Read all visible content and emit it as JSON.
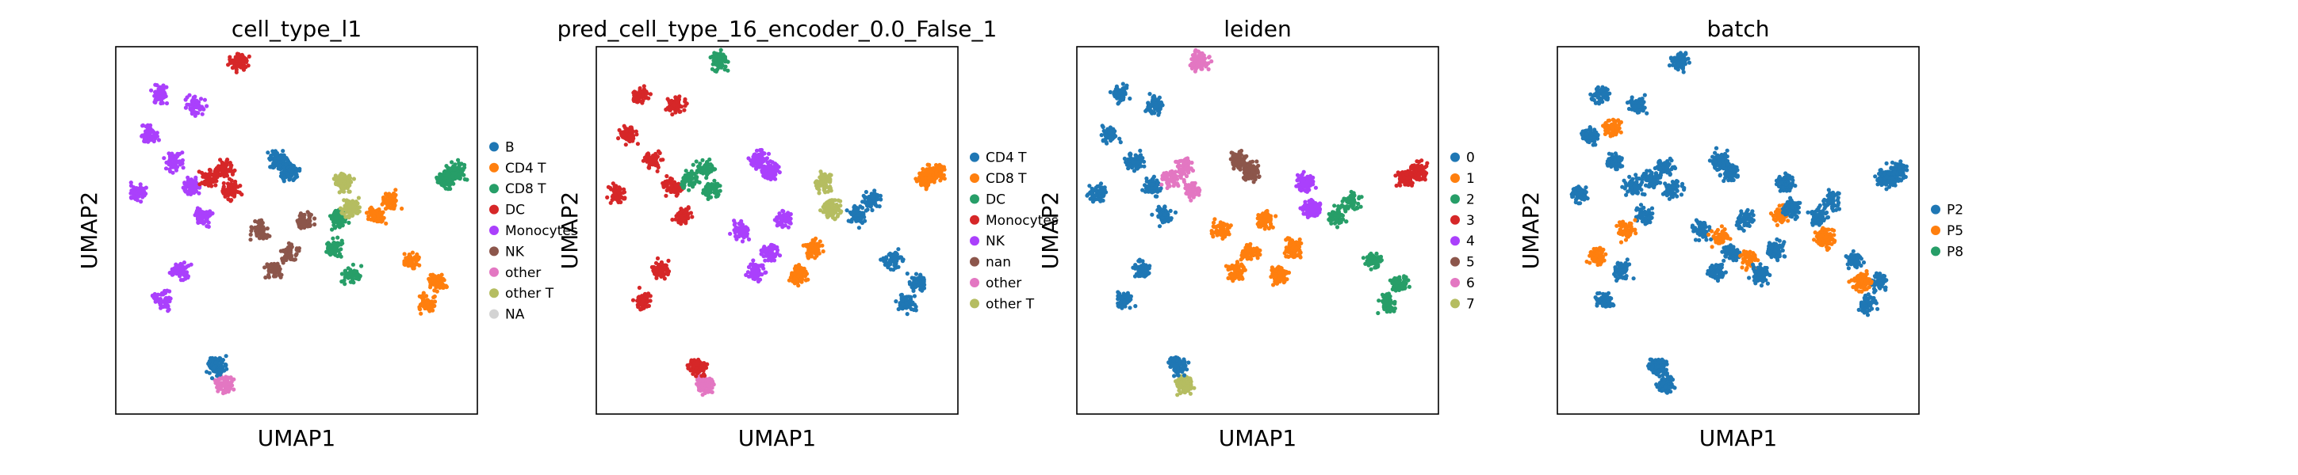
{
  "chart_data": [
    {
      "type": "scatter",
      "title": "cell_type_l1",
      "xlabel": "UMAP1",
      "ylabel": "UMAP2",
      "grid": false,
      "legend_placement": "right",
      "legend": [
        {
          "label": "B",
          "color": "#1f77b4"
        },
        {
          "label": "CD4 T",
          "color": "#ff7f0e"
        },
        {
          "label": "CD8 T",
          "color": "#279e68"
        },
        {
          "label": "DC",
          "color": "#d62728"
        },
        {
          "label": "Monocytes",
          "color": "#aa40fc"
        },
        {
          "label": "NK",
          "color": "#8c564b"
        },
        {
          "label": "other",
          "color": "#e377c2"
        },
        {
          "label": "other T",
          "color": "#b5bd61"
        },
        {
          "label": "NA",
          "color": "#d3d3d3"
        }
      ],
      "clusters": [
        {
          "category": "Monocytes",
          "points": [
            [
              1.2,
              8.7
            ],
            [
              2.2,
              8.4
            ],
            [
              1.6,
              6.9
            ],
            [
              2.4,
              5.4
            ],
            [
              1.8,
              3.9
            ],
            [
              1.3,
              3.1
            ],
            [
              0.6,
              6.0
            ],
            [
              0.9,
              7.6
            ],
            [
              2.1,
              6.2
            ]
          ]
        },
        {
          "category": "DC",
          "points": [
            [
              2.6,
              6.4
            ],
            [
              3.2,
              6.1
            ],
            [
              3.0,
              6.7
            ]
          ]
        },
        {
          "category": "DC",
          "points": [
            [
              3.4,
              9.6
            ]
          ]
        },
        {
          "category": "B",
          "points": [
            [
              4.5,
              6.9
            ],
            [
              4.8,
              6.6
            ]
          ]
        },
        {
          "category": "NK",
          "points": [
            [
              4.0,
              5.0
            ],
            [
              4.8,
              4.4
            ],
            [
              5.2,
              5.3
            ],
            [
              4.4,
              3.9
            ]
          ]
        },
        {
          "category": "CD8 T",
          "points": [
            [
              6.0,
              4.5
            ],
            [
              6.5,
              3.8
            ],
            [
              6.2,
              5.3
            ]
          ]
        },
        {
          "category": "other T",
          "points": [
            [
              6.3,
              6.3
            ],
            [
              6.5,
              5.6
            ]
          ]
        },
        {
          "category": "CD4 T",
          "points": [
            [
              7.2,
              5.4
            ],
            [
              8.2,
              4.2
            ],
            [
              8.6,
              3.0
            ],
            [
              7.6,
              5.8
            ],
            [
              8.9,
              3.6
            ]
          ]
        },
        {
          "category": "CD8 T",
          "points": [
            [
              9.1,
              6.4
            ],
            [
              9.4,
              6.6
            ]
          ]
        },
        {
          "category": "other",
          "points": [
            [
              3.0,
              0.8
            ]
          ]
        },
        {
          "category": "B",
          "points": [
            [
              2.8,
              1.3
            ]
          ]
        }
      ]
    },
    {
      "type": "scatter",
      "title": "pred_cell_type_16_encoder_0.0_False_1",
      "xlabel": "UMAP1",
      "ylabel": "UMAP2",
      "grid": false,
      "legend_placement": "right",
      "legend": [
        {
          "label": "CD4 T",
          "color": "#1f77b4"
        },
        {
          "label": "CD8 T",
          "color": "#ff7f0e"
        },
        {
          "label": "DC",
          "color": "#279e68"
        },
        {
          "label": "Monocytes",
          "color": "#d62728"
        },
        {
          "label": "NK",
          "color": "#aa40fc"
        },
        {
          "label": "nan",
          "color": "#8c564b"
        },
        {
          "label": "other",
          "color": "#e377c2"
        },
        {
          "label": "other T",
          "color": "#b5bd61"
        }
      ],
      "clusters": [
        {
          "category": "Monocytes",
          "points": [
            [
              1.2,
              8.7
            ],
            [
              2.2,
              8.4
            ],
            [
              1.6,
              6.9
            ],
            [
              2.4,
              5.4
            ],
            [
              1.8,
              3.9
            ],
            [
              1.3,
              3.1
            ],
            [
              0.6,
              6.0
            ],
            [
              0.9,
              7.6
            ],
            [
              2.1,
              6.2
            ]
          ]
        },
        {
          "category": "DC",
          "points": [
            [
              2.6,
              6.4
            ],
            [
              3.2,
              6.1
            ],
            [
              3.0,
              6.7
            ]
          ]
        },
        {
          "category": "DC",
          "points": [
            [
              3.4,
              9.6
            ]
          ]
        },
        {
          "category": "NK",
          "points": [
            [
              4.5,
              6.9
            ],
            [
              4.8,
              6.6
            ]
          ]
        },
        {
          "category": "NK",
          "points": [
            [
              4.0,
              5.0
            ],
            [
              4.8,
              4.4
            ],
            [
              5.2,
              5.3
            ],
            [
              4.4,
              3.9
            ]
          ]
        },
        {
          "category": "CD8 T",
          "points": [
            [
              6.0,
              4.5
            ],
            [
              5.6,
              3.8
            ]
          ]
        },
        {
          "category": "other T",
          "points": [
            [
              6.3,
              6.3
            ],
            [
              6.5,
              5.6
            ]
          ]
        },
        {
          "category": "CD4 T",
          "points": [
            [
              7.2,
              5.4
            ],
            [
              8.2,
              4.2
            ],
            [
              8.6,
              3.0
            ],
            [
              7.6,
              5.8
            ],
            [
              8.9,
              3.6
            ]
          ]
        },
        {
          "category": "CD8 T",
          "points": [
            [
              9.1,
              6.4
            ],
            [
              9.4,
              6.6
            ]
          ]
        },
        {
          "category": "other",
          "points": [
            [
              3.0,
              0.8
            ]
          ]
        },
        {
          "category": "Monocytes",
          "points": [
            [
              2.8,
              1.3
            ]
          ]
        }
      ]
    },
    {
      "type": "scatter",
      "title": "leiden",
      "xlabel": "UMAP1",
      "ylabel": "UMAP2",
      "grid": false,
      "legend_placement": "right",
      "legend": [
        {
          "label": "0",
          "color": "#1f77b4"
        },
        {
          "label": "1",
          "color": "#ff7f0e"
        },
        {
          "label": "2",
          "color": "#279e68"
        },
        {
          "label": "3",
          "color": "#d62728"
        },
        {
          "label": "4",
          "color": "#aa40fc"
        },
        {
          "label": "5",
          "color": "#8c564b"
        },
        {
          "label": "6",
          "color": "#e377c2"
        },
        {
          "label": "7",
          "color": "#b5bd61"
        }
      ],
      "clusters": [
        {
          "category": "0",
          "points": [
            [
              1.2,
              8.7
            ],
            [
              2.2,
              8.4
            ],
            [
              1.6,
              6.9
            ],
            [
              2.4,
              5.4
            ],
            [
              1.8,
              3.9
            ],
            [
              1.3,
              3.1
            ],
            [
              0.6,
              6.0
            ],
            [
              0.9,
              7.6
            ],
            [
              2.1,
              6.2
            ]
          ]
        },
        {
          "category": "6",
          "points": [
            [
              2.6,
              6.4
            ],
            [
              3.2,
              6.1
            ],
            [
              3.0,
              6.7
            ]
          ]
        },
        {
          "category": "6",
          "points": [
            [
              3.4,
              9.6
            ]
          ]
        },
        {
          "category": "5",
          "points": [
            [
              4.5,
              6.9
            ],
            [
              4.8,
              6.6
            ]
          ]
        },
        {
          "category": "1",
          "points": [
            [
              4.0,
              5.0
            ],
            [
              4.8,
              4.4
            ],
            [
              5.2,
              5.3
            ],
            [
              4.4,
              3.9
            ]
          ]
        },
        {
          "category": "1",
          "points": [
            [
              6.0,
              4.5
            ],
            [
              5.6,
              3.8
            ]
          ]
        },
        {
          "category": "4",
          "points": [
            [
              6.3,
              6.3
            ],
            [
              6.5,
              5.6
            ]
          ]
        },
        {
          "category": "2",
          "points": [
            [
              7.2,
              5.4
            ],
            [
              8.2,
              4.2
            ],
            [
              8.6,
              3.0
            ],
            [
              7.6,
              5.8
            ],
            [
              8.9,
              3.6
            ]
          ]
        },
        {
          "category": "3",
          "points": [
            [
              9.1,
              6.4
            ],
            [
              9.4,
              6.6
            ]
          ]
        },
        {
          "category": "7",
          "points": [
            [
              3.0,
              0.8
            ]
          ]
        },
        {
          "category": "0",
          "points": [
            [
              2.8,
              1.3
            ]
          ]
        }
      ]
    },
    {
      "type": "scatter",
      "title": "batch",
      "xlabel": "UMAP1",
      "ylabel": "UMAP2",
      "grid": false,
      "legend_placement": "right",
      "legend": [
        {
          "label": "P2",
          "color": "#1f77b4"
        },
        {
          "label": "P5",
          "color": "#ff7f0e"
        },
        {
          "label": "P8",
          "color": "#279e68"
        }
      ],
      "clusters": [
        {
          "category": "P2",
          "points": [
            [
              1.2,
              8.7
            ],
            [
              2.2,
              8.4
            ],
            [
              1.6,
              6.9
            ],
            [
              2.4,
              5.4
            ],
            [
              1.8,
              3.9
            ],
            [
              1.3,
              3.1
            ],
            [
              0.6,
              6.0
            ],
            [
              0.9,
              7.6
            ],
            [
              2.1,
              6.2
            ]
          ]
        },
        {
          "category": "P5",
          "points": [
            [
              1.5,
              7.8
            ],
            [
              1.9,
              5.0
            ],
            [
              1.1,
              4.3
            ]
          ]
        },
        {
          "category": "P2",
          "points": [
            [
              2.6,
              6.4
            ],
            [
              3.2,
              6.1
            ],
            [
              3.0,
              6.7
            ]
          ]
        },
        {
          "category": "P2",
          "points": [
            [
              3.4,
              9.6
            ]
          ]
        },
        {
          "category": "P2",
          "points": [
            [
              4.5,
              6.9
            ],
            [
              4.8,
              6.6
            ]
          ]
        },
        {
          "category": "P2",
          "points": [
            [
              4.0,
              5.0
            ],
            [
              4.8,
              4.4
            ],
            [
              5.2,
              5.3
            ],
            [
              4.4,
              3.9
            ]
          ]
        },
        {
          "category": "P5",
          "points": [
            [
              4.5,
              4.8
            ],
            [
              5.3,
              4.2
            ],
            [
              6.2,
              5.4
            ]
          ]
        },
        {
          "category": "P2",
          "points": [
            [
              6.0,
              4.5
            ],
            [
              5.6,
              3.8
            ]
          ]
        },
        {
          "category": "P2",
          "points": [
            [
              6.3,
              6.3
            ],
            [
              6.5,
              5.6
            ]
          ]
        },
        {
          "category": "P2",
          "points": [
            [
              7.2,
              5.4
            ],
            [
              8.2,
              4.2
            ],
            [
              8.6,
              3.0
            ],
            [
              7.6,
              5.8
            ],
            [
              8.9,
              3.6
            ]
          ]
        },
        {
          "category": "P5",
          "points": [
            [
              7.4,
              4.8
            ],
            [
              8.4,
              3.6
            ]
          ]
        },
        {
          "category": "P2",
          "points": [
            [
              9.1,
              6.4
            ],
            [
              9.4,
              6.6
            ]
          ]
        },
        {
          "category": "P2",
          "points": [
            [
              3.0,
              0.8
            ]
          ]
        },
        {
          "category": "P2",
          "points": [
            [
              2.8,
              1.3
            ]
          ]
        }
      ]
    }
  ]
}
